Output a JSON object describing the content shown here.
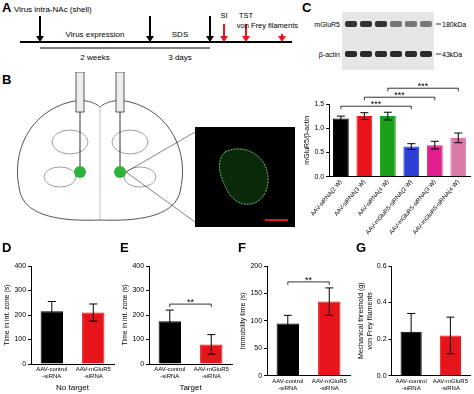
{
  "panel_labels": [
    "A",
    "B",
    "C",
    "D",
    "E",
    "F",
    "G"
  ],
  "timeline": {
    "injection": "Virus intra-NAc (shell)",
    "phases": [
      {
        "label": "Virus expression",
        "duration": "2 weeks"
      },
      {
        "label": "SDS",
        "duration": "3 days"
      }
    ],
    "tests": [
      "SI",
      "TST",
      "von Frey filaments"
    ]
  },
  "blot": {
    "bands": [
      {
        "name": "mGluR5",
        "size": "180kDa"
      },
      {
        "name": "β-actin",
        "size": "43kDa"
      }
    ]
  },
  "chart_data": [
    {
      "type": "bar",
      "y_label": "mGluR5/β-actin",
      "categories": [
        "AAV-siRNA(2 W)",
        "AAV-siRNA(3 W)",
        "AAV-siRNA(4 W)",
        "AAV-mGluR5-siRNA(2 W)",
        "AAV-mGluR5-siRNA(3 W)",
        "AAV-mGluR5-siRNA(4 W)"
      ],
      "values": [
        1.2,
        1.25,
        1.25,
        0.62,
        0.65,
        0.8
      ],
      "errors": [
        0.05,
        0.07,
        0.08,
        0.06,
        0.08,
        0.1
      ],
      "colors": [
        "#000000",
        "#e8141b",
        "#1aa01a",
        "#2a3fd6",
        "#e0208c",
        "#d97aa8"
      ],
      "ylim": [
        0,
        1.5
      ],
      "yticks": [
        {
          "value": 0,
          "label": "0.0"
        },
        {
          "value": 0.5,
          "label": "0.5"
        },
        {
          "value": 1,
          "label": "1.0"
        },
        {
          "value": 1.5,
          "label": "1.5"
        }
      ],
      "significance": [
        {
          "pair": [
            0,
            3
          ],
          "label": "***"
        },
        {
          "pair": [
            1,
            4
          ],
          "label": "***"
        },
        {
          "pair": [
            2,
            5
          ],
          "label": "***"
        }
      ],
      "grid": false
    },
    {
      "type": "bar",
      "y_label": "Time in int. zone (s)",
      "x_label": "No target",
      "categories": [
        "AAV-control -siRNA",
        "AAV-mGluR5 -siRNA"
      ],
      "values": [
        215,
        210
      ],
      "errors": [
        40,
        35
      ],
      "colors": [
        "#000000",
        "#e8141b"
      ],
      "ylim": [
        0,
        400
      ],
      "yticks": [
        0,
        100,
        200,
        300,
        400
      ],
      "significance": [],
      "grid": false
    },
    {
      "type": "bar",
      "y_label": "Time in int. zone (s)",
      "x_label": "Target",
      "categories": [
        "AAV-control -siRNA",
        "AAV-mGluR5 -siRNA"
      ],
      "values": [
        175,
        80
      ],
      "errors": [
        45,
        40
      ],
      "colors": [
        "#000000",
        "#e8141b"
      ],
      "ylim": [
        0,
        400
      ],
      "yticks": [
        0,
        100,
        200,
        300,
        400
      ],
      "significance": [
        {
          "pair": [
            0,
            1
          ],
          "label": "**"
        }
      ],
      "grid": false
    },
    {
      "type": "bar",
      "y_label": "Immobility time (s)",
      "categories": [
        "AAV-control -siRNA",
        "AAV-mGluR5 -siRNA"
      ],
      "values": [
        95,
        135
      ],
      "errors": [
        15,
        25
      ],
      "colors": [
        "#000000",
        "#e8141b"
      ],
      "ylim": [
        0,
        200
      ],
      "yticks": [
        0,
        50,
        100,
        150,
        200
      ],
      "significance": [
        {
          "pair": [
            0,
            1
          ],
          "label": "**"
        }
      ],
      "grid": false
    },
    {
      "type": "bar",
      "y_label": [
        "Mechanical threshold (g)",
        "von Frey filaments"
      ],
      "categories": [
        "AAV-control -siRNA",
        "AAV-mGluR5 -siRNA"
      ],
      "values": [
        0.24,
        0.22
      ],
      "errors": [
        0.1,
        0.1
      ],
      "colors": [
        "#000000",
        "#e8141b"
      ],
      "ylim": [
        0,
        0.6
      ],
      "yticks": [
        {
          "value": 0,
          "label": "0.0"
        },
        {
          "value": 0.2,
          "label": "0.2"
        },
        {
          "value": 0.4,
          "label": "0.4"
        },
        {
          "value": 0.6,
          "label": "0.6"
        }
      ],
      "significance": [],
      "grid": false
    }
  ]
}
